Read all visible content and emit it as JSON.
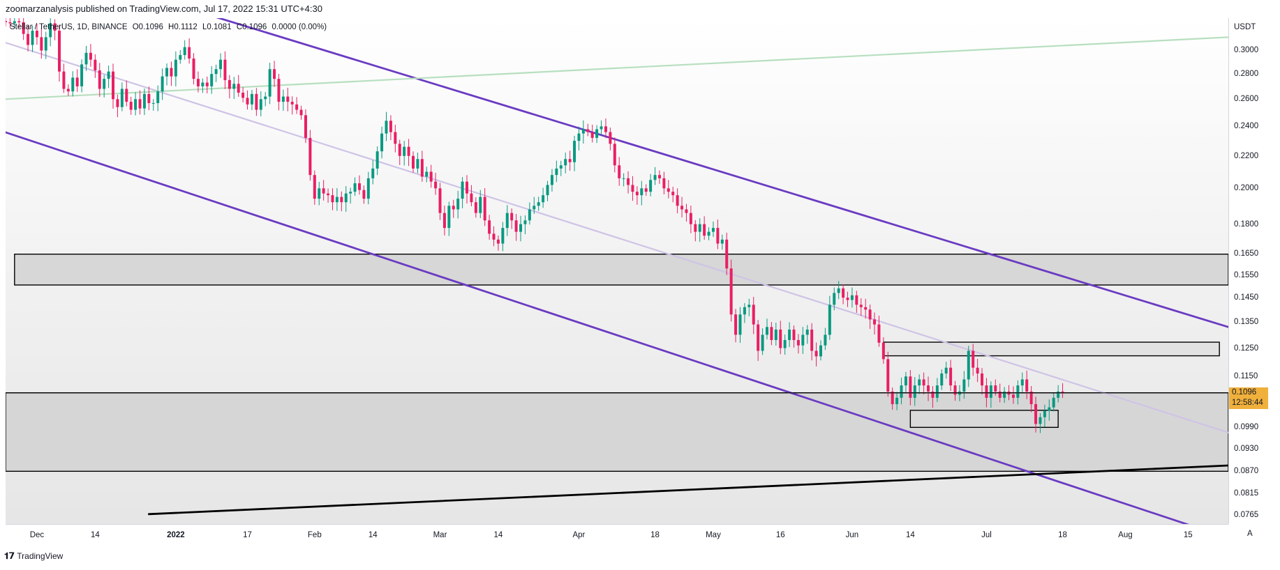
{
  "header": {
    "publisher": "zoomarzanalysis published on TradingView.com, Jul 17, 2022 15:31 UTC+4:30"
  },
  "legend": {
    "symbol": "Stellar / TetherUS, 1D, BINANCE",
    "open": "O0.1096",
    "high": "H0.1112",
    "low": "L0.1081",
    "close": "C0.1096",
    "change": "0.0000 (0.00%)"
  },
  "price_tag": {
    "price": "0.1096",
    "countdown": "12:58:44"
  },
  "axis_auto": "A",
  "footer": {
    "brand": "TradingView"
  },
  "colors": {
    "up": "#089981",
    "down": "#e91e63",
    "channel": "#6a3bc2",
    "midline": "#cfc3e6",
    "green_line": "#b7dfbf",
    "zone_fill": "#d4d4d4",
    "price_tag": "#f0b03c"
  },
  "chart_data": {
    "type": "candlestick",
    "symbol": "Stellar / TetherUS",
    "interval": "1D",
    "exchange": "BINANCE",
    "y_unit": "USDT",
    "y_scale": "log",
    "ylim": [
      0.0745,
      0.33
    ],
    "xlim": [
      "2021-11-24",
      "2022-08-24"
    ],
    "y_ticks": [
      0.3,
      0.28,
      0.26,
      0.24,
      0.22,
      0.2,
      0.18,
      0.165,
      0.155,
      0.145,
      0.135,
      0.125,
      0.115,
      0.099,
      0.093,
      0.087,
      0.0815,
      0.0765
    ],
    "y_tick_labels": [
      "0.3000",
      "0.2800",
      "0.2600",
      "0.2400",
      "0.2200",
      "0.2000",
      "0.1800",
      "0.1650",
      "0.1550",
      "0.1450",
      "0.1350",
      "0.1250",
      "0.1150",
      "0.0990",
      "0.0930",
      "0.0870",
      "0.0815",
      "0.0765"
    ],
    "x_ticks": [
      {
        "date": "2021-12-01",
        "label": "Dec",
        "bold": false
      },
      {
        "date": "2021-12-14",
        "label": "14",
        "bold": false
      },
      {
        "date": "2022-01-01",
        "label": "2022",
        "bold": true
      },
      {
        "date": "2022-01-17",
        "label": "17",
        "bold": false
      },
      {
        "date": "2022-02-01",
        "label": "Feb",
        "bold": false
      },
      {
        "date": "2022-02-14",
        "label": "14",
        "bold": false
      },
      {
        "date": "2022-03-01",
        "label": "Mar",
        "bold": false
      },
      {
        "date": "2022-03-14",
        "label": "14",
        "bold": false
      },
      {
        "date": "2022-04-01",
        "label": "Apr",
        "bold": false
      },
      {
        "date": "2022-04-18",
        "label": "18",
        "bold": false
      },
      {
        "date": "2022-05-01",
        "label": "May",
        "bold": false
      },
      {
        "date": "2022-05-16",
        "label": "16",
        "bold": false
      },
      {
        "date": "2022-06-01",
        "label": "Jun",
        "bold": false
      },
      {
        "date": "2022-06-14",
        "label": "14",
        "bold": false
      },
      {
        "date": "2022-07-01",
        "label": "Jul",
        "bold": false
      },
      {
        "date": "2022-07-18",
        "label": "18",
        "bold": false
      },
      {
        "date": "2022-08-01",
        "label": "Aug",
        "bold": false
      },
      {
        "date": "2022-08-15",
        "label": "15",
        "bold": false
      }
    ],
    "last_price": 0.1096,
    "closes_start": "2021-11-24",
    "closes": [
      0.326,
      0.325,
      0.327,
      0.326,
      0.315,
      0.305,
      0.318,
      0.312,
      0.3,
      0.312,
      0.325,
      0.318,
      0.282,
      0.268,
      0.266,
      0.277,
      0.27,
      0.288,
      0.298,
      0.292,
      0.283,
      0.268,
      0.276,
      0.282,
      0.26,
      0.254,
      0.268,
      0.258,
      0.252,
      0.26,
      0.253,
      0.264,
      0.257,
      0.257,
      0.266,
      0.278,
      0.285,
      0.278,
      0.292,
      0.296,
      0.303,
      0.293,
      0.276,
      0.27,
      0.273,
      0.27,
      0.28,
      0.284,
      0.292,
      0.275,
      0.268,
      0.272,
      0.265,
      0.261,
      0.256,
      0.264,
      0.252,
      0.26,
      0.262,
      0.284,
      0.276,
      0.258,
      0.262,
      0.258,
      0.256,
      0.252,
      0.248,
      0.232,
      0.208,
      0.194,
      0.2,
      0.197,
      0.196,
      0.192,
      0.195,
      0.192,
      0.197,
      0.198,
      0.203,
      0.199,
      0.194,
      0.206,
      0.212,
      0.223,
      0.235,
      0.244,
      0.236,
      0.228,
      0.22,
      0.226,
      0.22,
      0.212,
      0.218,
      0.207,
      0.21,
      0.204,
      0.2,
      0.186,
      0.178,
      0.19,
      0.188,
      0.194,
      0.204,
      0.197,
      0.192,
      0.186,
      0.195,
      0.182,
      0.175,
      0.172,
      0.17,
      0.178,
      0.186,
      0.182,
      0.176,
      0.18,
      0.182,
      0.188,
      0.19,
      0.192,
      0.196,
      0.202,
      0.208,
      0.212,
      0.214,
      0.218,
      0.216,
      0.23,
      0.235,
      0.238,
      0.236,
      0.232,
      0.238,
      0.24,
      0.236,
      0.228,
      0.214,
      0.206,
      0.206,
      0.202,
      0.198,
      0.196,
      0.2,
      0.198,
      0.205,
      0.208,
      0.206,
      0.2,
      0.198,
      0.196,
      0.19,
      0.188,
      0.186,
      0.18,
      0.176,
      0.18,
      0.174,
      0.176,
      0.178,
      0.17,
      0.172,
      0.158,
      0.138,
      0.13,
      0.138,
      0.141,
      0.142,
      0.134,
      0.124,
      0.13,
      0.133,
      0.128,
      0.132,
      0.125,
      0.128,
      0.132,
      0.128,
      0.126,
      0.13,
      0.132,
      0.124,
      0.122,
      0.126,
      0.13,
      0.142,
      0.147,
      0.149,
      0.145,
      0.144,
      0.146,
      0.142,
      0.141,
      0.14,
      0.136,
      0.134,
      0.127,
      0.121,
      0.11,
      0.106,
      0.108,
      0.112,
      0.115,
      0.108,
      0.112,
      0.114,
      0.112,
      0.11,
      0.108,
      0.112,
      0.116,
      0.118,
      0.112,
      0.109,
      0.11,
      0.114,
      0.124,
      0.118,
      0.116,
      0.112,
      0.108,
      0.112,
      0.11,
      0.108,
      0.11,
      0.109,
      0.108,
      0.112,
      0.114,
      0.11,
      0.106,
      0.1,
      0.102,
      0.104,
      0.105,
      0.108,
      0.11,
      0.1096
    ],
    "trend_lines": [
      {
        "name": "",
        "color": "#6a3bc2",
        "from": {
          "date": "2021-11-24",
          "price": 0.2358
        },
        "to": {
          "date": "2022-08-24",
          "price": 0.0715
        }
      },
      {
        "name": "",
        "color": "#6a3bc2",
        "from": {
          "date": "2021-11-24",
          "price": 0.4
        },
        "to": {
          "date": "2022-08-24",
          "price": 0.133
        }
      },
      {
        "name": "",
        "color": "#cfc3e6",
        "from": {
          "date": "2021-11-24",
          "price": 0.307
        },
        "to": {
          "date": "2022-08-24",
          "price": 0.0975
        }
      },
      {
        "name": "",
        "color": "#b7dfbf",
        "from": {
          "date": "2021-11-24",
          "price": 0.26
        },
        "to": {
          "date": "2022-08-24",
          "price": 0.312
        }
      },
      {
        "name": "",
        "color": "#000000",
        "from": {
          "date": "2021-12-26",
          "price": 0.0767
        },
        "to": {
          "date": "2022-08-24",
          "price": 0.0885
        }
      }
    ],
    "zones": [
      {
        "from_date": "2021-11-26",
        "to_date": "2022-08-24",
        "top": 0.1648,
        "bottom": 0.1505,
        "fill": "#d4d4d4"
      },
      {
        "from_date": "2021-11-24",
        "to_date": "2022-08-24",
        "top": 0.1096,
        "bottom": 0.087,
        "fill": "#d4d4d4"
      },
      {
        "from_date": "2022-06-08",
        "to_date": "2022-08-22",
        "top": 0.1272,
        "bottom": 0.1222,
        "fill": "#e0e0e0"
      },
      {
        "from_date": "2022-06-14",
        "to_date": "2022-07-17",
        "top": 0.1041,
        "bottom": 0.099,
        "fill": "#d9d9d9"
      }
    ]
  }
}
